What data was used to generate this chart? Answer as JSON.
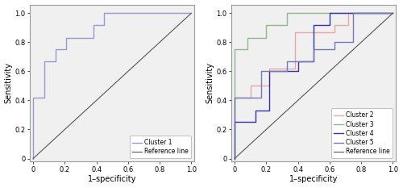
{
  "cluster1": {
    "x": [
      0,
      0,
      0.07,
      0.07,
      0.14,
      0.14,
      0.21,
      0.21,
      0.38,
      0.38,
      0.45,
      0.45,
      0.55,
      0.55,
      1.0
    ],
    "y": [
      0,
      0.42,
      0.42,
      0.67,
      0.67,
      0.75,
      0.75,
      0.83,
      0.83,
      0.92,
      0.92,
      1.0,
      1.0,
      1.0,
      1.0
    ],
    "color": "#9999cc",
    "label": "Cluster 1"
  },
  "cluster2": {
    "x": [
      0,
      0,
      0.1,
      0.1,
      0.22,
      0.22,
      0.38,
      0.38,
      0.63,
      0.63,
      0.72,
      0.72,
      1.0
    ],
    "y": [
      0,
      0.42,
      0.42,
      0.5,
      0.5,
      0.62,
      0.62,
      0.87,
      0.87,
      0.92,
      0.92,
      1.0,
      1.0
    ],
    "color": "#e8a8a8",
    "label": "Cluster 2"
  },
  "cluster3": {
    "x": [
      0,
      0,
      0.08,
      0.08,
      0.2,
      0.2,
      0.33,
      0.33,
      1.0
    ],
    "y": [
      0,
      0.75,
      0.75,
      0.83,
      0.83,
      0.92,
      0.92,
      1.0,
      1.0
    ],
    "color": "#88bb88",
    "label": "Cluster 3"
  },
  "cluster4": {
    "x": [
      0,
      0,
      0.13,
      0.13,
      0.22,
      0.22,
      0.4,
      0.4,
      0.5,
      0.5,
      0.6,
      0.6,
      1.0
    ],
    "y": [
      0,
      0.25,
      0.25,
      0.33,
      0.33,
      0.6,
      0.6,
      0.67,
      0.67,
      0.92,
      0.92,
      1.0,
      1.0
    ],
    "color": "#3333aa",
    "label": "Cluster 4"
  },
  "cluster5": {
    "x": [
      0,
      0,
      0.17,
      0.17,
      0.33,
      0.33,
      0.5,
      0.5,
      0.63,
      0.63,
      0.75,
      0.75,
      1.0
    ],
    "y": [
      0,
      0.42,
      0.42,
      0.6,
      0.6,
      0.67,
      0.67,
      0.75,
      0.75,
      0.8,
      0.8,
      1.0,
      1.0
    ],
    "color": "#7777bb",
    "label": "Cluster 5"
  },
  "reference": {
    "color": "#555555",
    "label": "Reference line"
  },
  "xlabel": "1–specificity",
  "ylabel": "Sensitivity",
  "tick_labels": [
    "0",
    "0.2",
    "0.4",
    "0.6",
    "0.8",
    "1.0"
  ],
  "tick_values": [
    0.0,
    0.2,
    0.4,
    0.6,
    0.8,
    1.0
  ],
  "xlim": [
    -0.02,
    1.02
  ],
  "ylim": [
    -0.02,
    1.06
  ],
  "legend_fontsize": 5.5,
  "axis_fontsize": 7,
  "tick_fontsize": 6,
  "bg_color": "#f0f0f0"
}
